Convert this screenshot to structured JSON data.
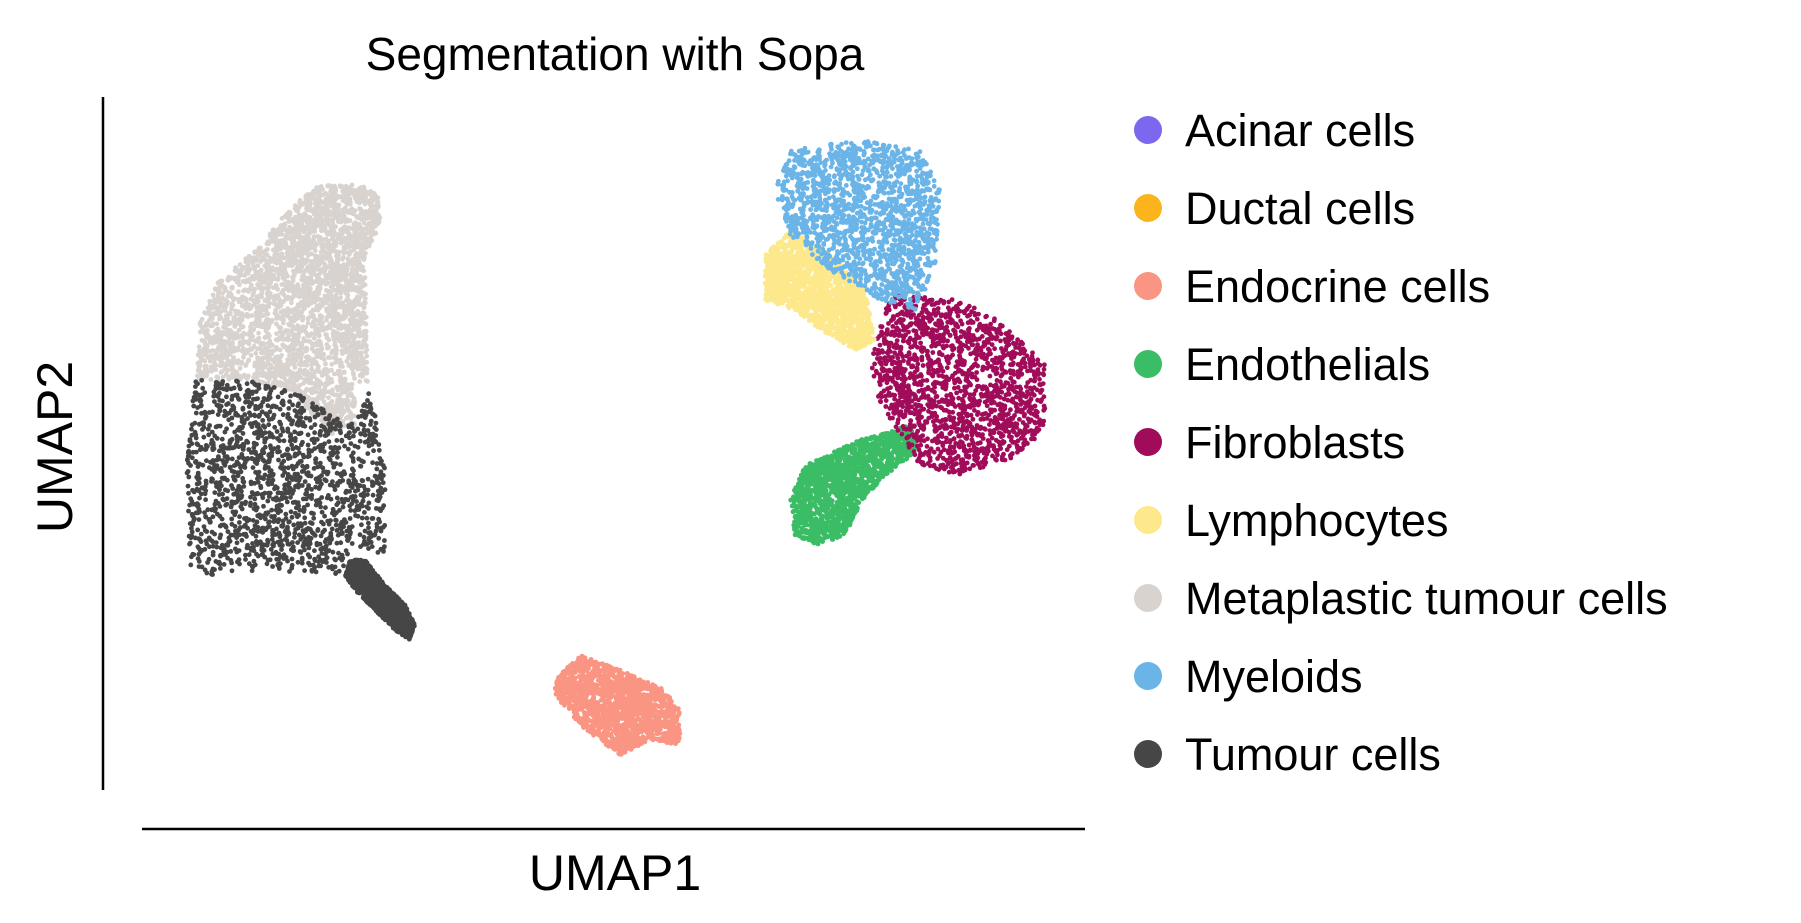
{
  "chart_data": {
    "type": "scatter",
    "title": "Segmentation with Sopa",
    "xlabel": "UMAP1",
    "ylabel": "UMAP2",
    "xticks": false,
    "yticks": false,
    "grid": false,
    "legend_placement": "right",
    "series": [
      {
        "name": "Acinar cells",
        "color": "#7b68ee"
      },
      {
        "name": "Ductal cells",
        "color": "#fbb41b"
      },
      {
        "name": "Endocrine cells",
        "color": "#fa9583"
      },
      {
        "name": "Endothelials",
        "color": "#3bbd66"
      },
      {
        "name": "Fibroblasts",
        "color": "#a00c5a"
      },
      {
        "name": "Lymphocytes",
        "color": "#fde98c"
      },
      {
        "name": "Metaplastic tumour cells",
        "color": "#d9d3cf"
      },
      {
        "name": "Myeloids",
        "color": "#6ab4e8"
      },
      {
        "name": "Tumour cells",
        "color": "#464646"
      }
    ]
  }
}
